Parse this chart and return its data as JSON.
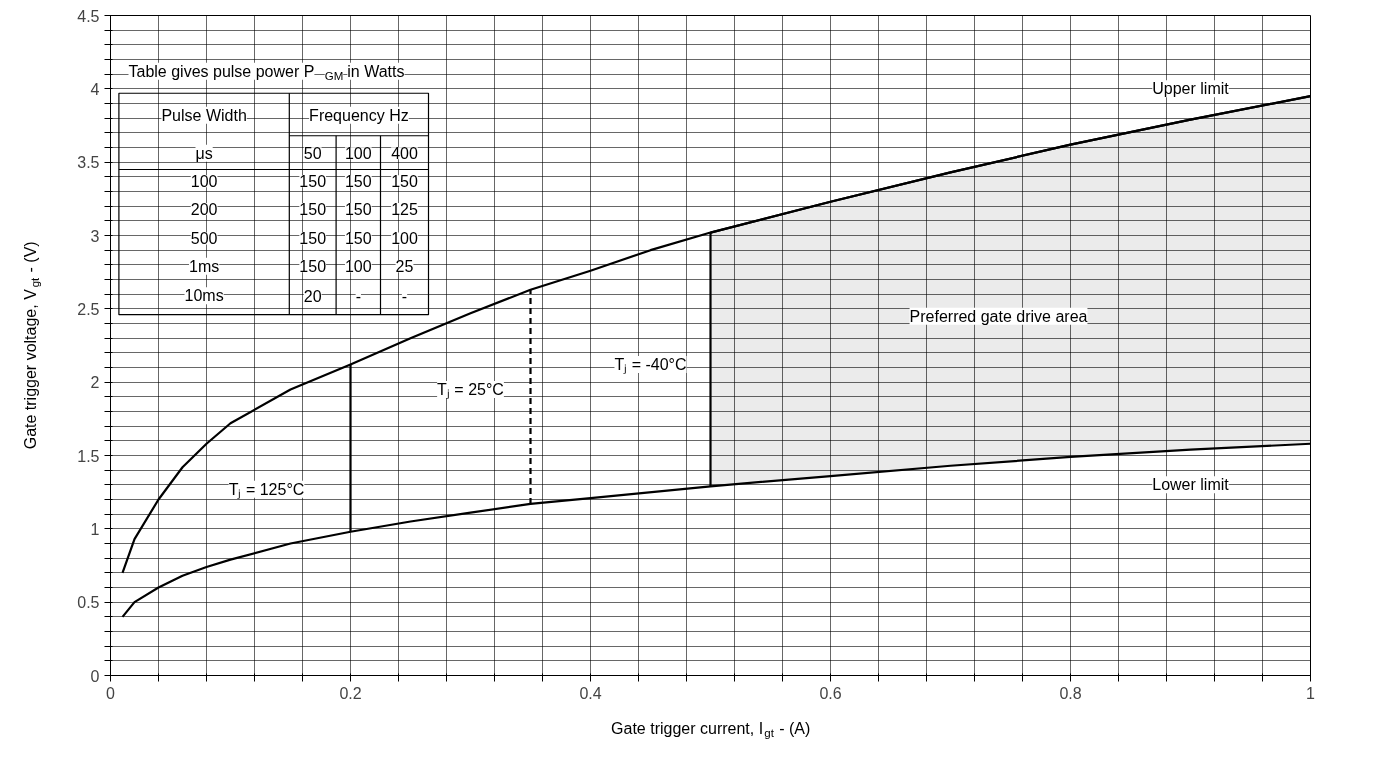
{
  "chart_data": {
    "type": "line",
    "xlabel": "Gate trigger current, I$_{gt}$ - (A)",
    "ylabel": "Gate trigger voltage, V$_{gt}$ - (V)",
    "xlim": [
      0,
      1
    ],
    "ylim": [
      0,
      4.5
    ],
    "xticks": [
      0,
      0.2,
      0.4,
      0.6,
      0.8,
      1,
      {
        "value": 0.04,
        "label": null
      },
      {
        "value": 0.08,
        "label": null
      },
      {
        "value": 0.12,
        "label": null
      },
      {
        "value": 0.16,
        "label": null
      },
      {
        "value": 0.24,
        "label": null
      },
      {
        "value": 0.28,
        "label": null
      },
      {
        "value": 0.32,
        "label": null
      },
      {
        "value": 0.36,
        "label": null
      },
      {
        "value": 0.44,
        "label": null
      },
      {
        "value": 0.48,
        "label": null
      },
      {
        "value": 0.52,
        "label": null
      },
      {
        "value": 0.56,
        "label": null
      },
      {
        "value": 0.64,
        "label": null
      },
      {
        "value": 0.68,
        "label": null
      },
      {
        "value": 0.72,
        "label": null
      },
      {
        "value": 0.76,
        "label": null
      },
      {
        "value": 0.84,
        "label": null
      },
      {
        "value": 0.88,
        "label": null
      },
      {
        "value": 0.92,
        "label": null
      },
      {
        "value": 0.96,
        "label": null
      }
    ],
    "yticks": [
      0,
      0.5,
      1,
      1.5,
      2,
      2.5,
      3,
      3.5,
      4,
      4.5,
      {
        "value": 0.1,
        "label": null
      },
      {
        "value": 0.2,
        "label": null
      },
      {
        "value": 0.3,
        "label": null
      },
      {
        "value": 0.4,
        "label": null
      },
      {
        "value": 0.6,
        "label": null
      },
      {
        "value": 0.7,
        "label": null
      },
      {
        "value": 0.8,
        "label": null
      },
      {
        "value": 0.9,
        "label": null
      },
      {
        "value": 1.1,
        "label": null
      },
      {
        "value": 1.2,
        "label": null
      },
      {
        "value": 1.3,
        "label": null
      },
      {
        "value": 1.4,
        "label": null
      },
      {
        "value": 1.6,
        "label": null
      },
      {
        "value": 1.7,
        "label": null
      },
      {
        "value": 1.8,
        "label": null
      },
      {
        "value": 1.9,
        "label": null
      },
      {
        "value": 2.1,
        "label": null
      },
      {
        "value": 2.2,
        "label": null
      },
      {
        "value": 2.3,
        "label": null
      },
      {
        "value": 2.4,
        "label": null
      },
      {
        "value": 2.6,
        "label": null
      },
      {
        "value": 2.7,
        "label": null
      },
      {
        "value": 2.8,
        "label": null
      },
      {
        "value": 2.9,
        "label": null
      },
      {
        "value": 3.1,
        "label": null
      },
      {
        "value": 3.2,
        "label": null
      },
      {
        "value": 3.3,
        "label": null
      },
      {
        "value": 3.4,
        "label": null
      },
      {
        "value": 3.6,
        "label": null
      },
      {
        "value": 3.7,
        "label": null
      },
      {
        "value": 3.8,
        "label": null
      },
      {
        "value": 3.9,
        "label": null
      },
      {
        "value": 4.1,
        "label": null
      },
      {
        "value": 4.2,
        "label": null
      },
      {
        "value": 4.3,
        "label": null
      },
      {
        "value": 4.4,
        "label": null
      }
    ],
    "grid": true,
    "series": [
      {
        "color": "#000000",
        "x": [
          0.5,
          0.6,
          0.7,
          0.8,
          0.9,
          1.0
        ],
        "values": [
          3.02,
          3.23,
          3.43,
          3.62,
          3.79,
          3.95
        ],
        "lower": [
          1.29,
          1.36,
          1.43,
          1.49,
          1.54,
          1.58
        ],
        "upper": [
          3.02,
          3.23,
          3.43,
          3.62,
          3.79,
          3.95
        ]
      },
      {
        "color": "#000000",
        "x": [
          0.01,
          0.02,
          0.04,
          0.06,
          0.08,
          0.1,
          0.15,
          0.2,
          0.25,
          0.3,
          0.35,
          0.4,
          0.45,
          0.5,
          0.6,
          0.7,
          0.8,
          0.9,
          1.0
        ],
        "values": [
          0.7,
          0.93,
          1.2,
          1.42,
          1.58,
          1.72,
          1.95,
          2.12,
          2.3,
          2.47,
          2.63,
          2.76,
          2.9,
          3.02,
          3.23,
          3.43,
          3.62,
          3.79,
          3.95
        ]
      },
      {
        "color": "#000000",
        "x": [
          0.01,
          0.02,
          0.04,
          0.06,
          0.08,
          0.1,
          0.15,
          0.2,
          0.25,
          0.3,
          0.35,
          0.4,
          0.5,
          0.6,
          0.7,
          0.8,
          0.9,
          1.0
        ],
        "values": [
          0.4,
          0.5,
          0.6,
          0.68,
          0.74,
          0.79,
          0.9,
          0.98,
          1.05,
          1.11,
          1.17,
          1.21,
          1.29,
          1.36,
          1.43,
          1.49,
          1.54,
          1.58
        ]
      },
      {
        "color": "#000000",
        "x": [
          0.2,
          0.2
        ],
        "values": [
          0.98,
          2.12
        ]
      },
      {
        "color": "#000000",
        "line_style": "dashed",
        "x": [
          0.35,
          0.35
        ],
        "values": [
          1.17,
          2.63
        ]
      },
      {
        "color": "#000000",
        "x": [
          0.5,
          0.5
        ],
        "values": [
          1.29,
          3.02
        ]
      }
    ],
    "annotations": [
      "Table gives pulse power P$_{GM}$ in Watts",
      "Pulse Width",
      "Frequency Hz",
      "μs",
      "50",
      "100",
      "400",
      "100",
      "150",
      "150",
      "150",
      "200",
      "150",
      "150",
      "125",
      "500",
      "150",
      "150",
      "100",
      "1ms",
      "150",
      "100",
      "25",
      "10ms",
      "20",
      "-",
      "-",
      "Upper limit",
      "Lower limit",
      "Preferred gate drive area",
      "Tⱼ = 125°C",
      "Tⱼ = 25°C",
      "Tⱼ = -40°C"
    ]
  }
}
